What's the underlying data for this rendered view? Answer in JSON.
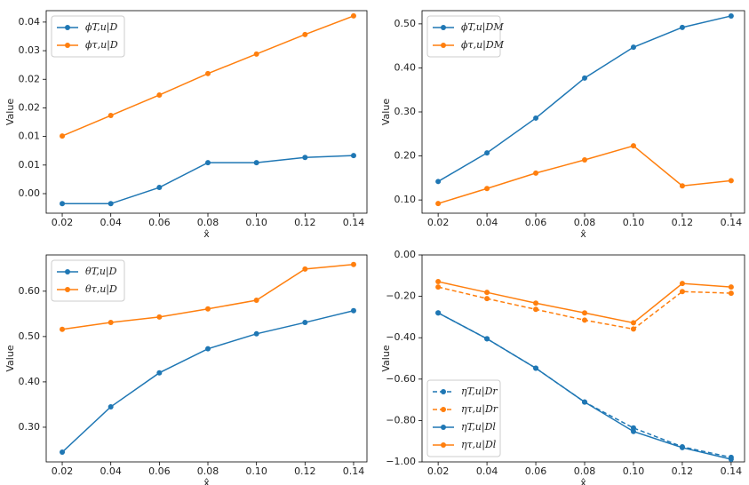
{
  "chart_data": [
    {
      "type": "line",
      "x": [
        0.02,
        0.04,
        0.06,
        0.08,
        0.1,
        0.12,
        0.14
      ],
      "xlim": [
        0.0134,
        0.1455
      ],
      "xticks": [
        0.02,
        0.04,
        0.06,
        0.08,
        {
          "value": 0.1,
          "label": "0.10"
        },
        0.12,
        0.14
      ],
      "ylim": [
        -0.0041,
        0.0384
      ],
      "yticks": [
        {
          "value": 0,
          "label": "0.00"
        },
        {
          "value": 0.006,
          "label": "0.01"
        },
        {
          "value": 0.012,
          "label": "0.01"
        },
        {
          "value": 0.018,
          "label": "0.02"
        },
        {
          "value": 0.024,
          "label": "0.02"
        },
        {
          "value": 0.03,
          "label": "0.03"
        },
        {
          "value": 0.036,
          "label": "0.04"
        }
      ],
      "xlabel": "x̂",
      "ylabel": "Value",
      "legend": "upper left",
      "grid": false,
      "series": [
        {
          "name": "ϕT,u|D",
          "color": "#1f77b4",
          "linestyle": "solid",
          "values": [
            -0.0021,
            -0.0021,
            0.0013,
            0.0065,
            0.0065,
            0.0076,
            0.008
          ]
        },
        {
          "name": "ϕτ,u|D",
          "color": "#ff7f0e",
          "linestyle": "solid",
          "values": [
            0.0121,
            0.0164,
            0.0207,
            0.0252,
            0.0293,
            0.0334,
            0.0373
          ]
        }
      ]
    },
    {
      "type": "line",
      "x": [
        0.02,
        0.04,
        0.06,
        0.08,
        0.1,
        0.12,
        0.14
      ],
      "xlim": [
        0.0134,
        0.1455
      ],
      "xticks": [
        0.02,
        0.04,
        0.06,
        0.08,
        {
          "value": 0.1,
          "label": "0.10"
        },
        0.12,
        0.14
      ],
      "ylim": [
        0.07,
        0.53
      ],
      "yticks": [
        {
          "value": 0.1,
          "label": "0.10"
        },
        {
          "value": 0.2,
          "label": "0.20"
        },
        {
          "value": 0.3,
          "label": "0.30"
        },
        {
          "value": 0.4,
          "label": "0.40"
        },
        {
          "value": 0.5,
          "label": "0.50"
        }
      ],
      "xlabel": "x̂",
      "ylabel": "Value",
      "legend": "upper left",
      "grid": false,
      "series": [
        {
          "name": "ϕT,u|DM",
          "color": "#1f77b4",
          "linestyle": "solid",
          "values": [
            0.142,
            0.207,
            0.286,
            0.377,
            0.447,
            0.492,
            0.518
          ]
        },
        {
          "name": "ϕτ,u|DM",
          "color": "#ff7f0e",
          "linestyle": "solid",
          "values": [
            0.092,
            0.126,
            0.161,
            0.191,
            0.223,
            0.132,
            0.144
          ]
        }
      ]
    },
    {
      "type": "line",
      "x": [
        0.02,
        0.04,
        0.06,
        0.08,
        0.1,
        0.12,
        0.14
      ],
      "xlim": [
        0.0134,
        0.1455
      ],
      "xticks": [
        0.02,
        0.04,
        0.06,
        0.08,
        {
          "value": 0.1,
          "label": "0.10"
        },
        0.12,
        0.14
      ],
      "ylim": [
        0.2235,
        0.68
      ],
      "yticks": [
        {
          "value": 0.3,
          "label": "0.30"
        },
        {
          "value": 0.4,
          "label": "0.40"
        },
        {
          "value": 0.5,
          "label": "0.50"
        },
        {
          "value": 0.6,
          "label": "0.60"
        }
      ],
      "xlabel": "x̂",
      "ylabel": "Value",
      "legend": "upper left",
      "grid": false,
      "series": [
        {
          "name": "θT,u|D",
          "color": "#1f77b4",
          "linestyle": "solid",
          "values": [
            0.245,
            0.345,
            0.42,
            0.473,
            0.506,
            0.531,
            0.557
          ]
        },
        {
          "name": "θτ,u|D",
          "color": "#ff7f0e",
          "linestyle": "solid",
          "values": [
            0.516,
            0.531,
            0.543,
            0.561,
            0.58,
            0.649,
            0.659
          ]
        }
      ]
    },
    {
      "type": "line",
      "x": [
        0.02,
        0.04,
        0.06,
        0.08,
        0.1,
        0.12,
        0.14
      ],
      "xlim": [
        0.0134,
        0.1455
      ],
      "xticks": [
        0.02,
        0.04,
        0.06,
        0.08,
        {
          "value": 0.1,
          "label": "0.10"
        },
        0.12,
        0.14
      ],
      "ylim": [
        -1.0,
        0.0
      ],
      "yticks": [
        {
          "value": -1.0,
          "label": "−1.00"
        },
        {
          "value": -0.8,
          "label": "−0.80"
        },
        {
          "value": -0.6,
          "label": "−0.60"
        },
        {
          "value": -0.4,
          "label": "−0.40"
        },
        {
          "value": -0.2,
          "label": "−0.20"
        },
        {
          "value": 0,
          "label": "0.00"
        }
      ],
      "xlabel": "x̂",
      "ylabel": "Value",
      "legend": "lower left",
      "grid": false,
      "series": [
        {
          "name": "ηT,u|Dr",
          "color": "#1f77b4",
          "linestyle": "dashed",
          "values": [
            -0.28,
            -0.405,
            -0.547,
            -0.711,
            -0.836,
            -0.927,
            -0.978
          ]
        },
        {
          "name": "ητ,u|Dr",
          "color": "#ff7f0e",
          "linestyle": "dashed",
          "values": [
            -0.155,
            -0.211,
            -0.263,
            -0.315,
            -0.358,
            -0.177,
            -0.185
          ]
        },
        {
          "name": "ηT,u|Dl",
          "color": "#1f77b4",
          "linestyle": "solid",
          "values": [
            -0.28,
            -0.405,
            -0.547,
            -0.711,
            -0.853,
            -0.931,
            -0.987
          ]
        },
        {
          "name": "ητ,u|Dl",
          "color": "#ff7f0e",
          "linestyle": "solid",
          "values": [
            -0.129,
            -0.181,
            -0.233,
            -0.28,
            -0.328,
            -0.138,
            -0.155
          ]
        }
      ]
    }
  ]
}
